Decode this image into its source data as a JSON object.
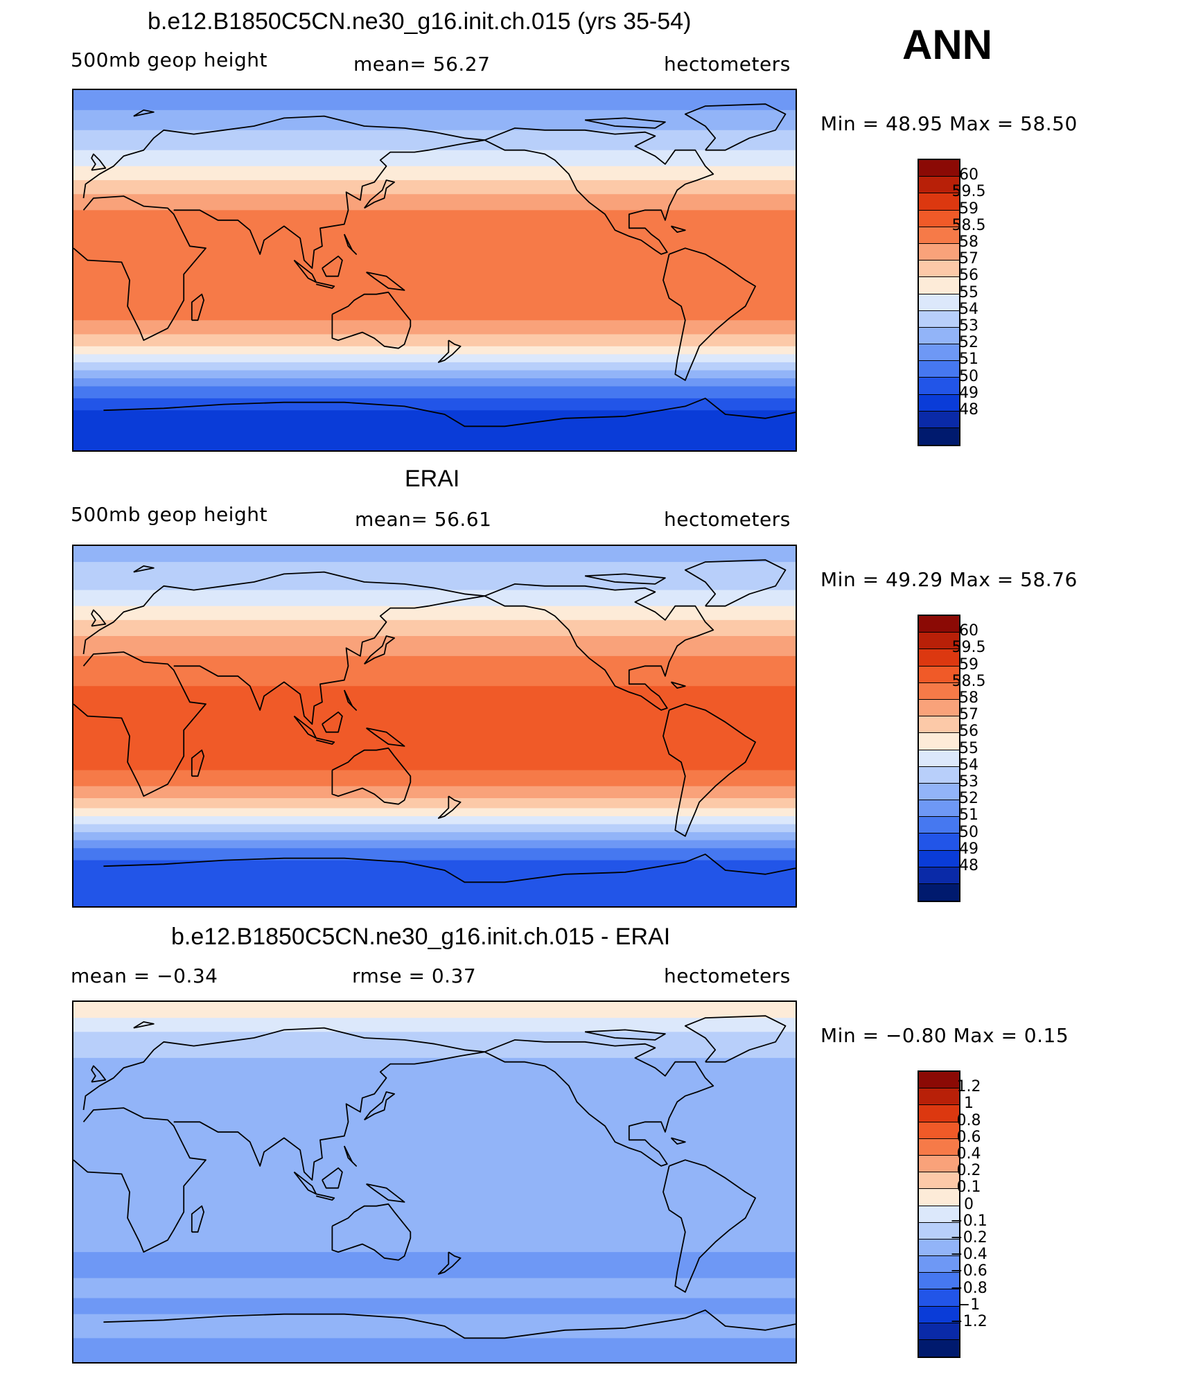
{
  "season": "ANN",
  "palette_abs": [
    "#001a6e",
    "#0a2aa8",
    "#0a3cd8",
    "#2255e8",
    "#4678f0",
    "#6e98f5",
    "#92b4f8",
    "#b8cffa",
    "#dce8fb",
    "#fdebd8",
    "#fcc9a8",
    "#f9a27a",
    "#f67a48",
    "#f05a28",
    "#dc3810",
    "#b82008",
    "#8b0a05"
  ],
  "palette_diff": [
    "#001a6e",
    "#0a2aa8",
    "#0a3cd8",
    "#2255e8",
    "#4678f0",
    "#6e98f5",
    "#92b4f8",
    "#b8cffa",
    "#dce8fb",
    "#fdebd8",
    "#fcc9a8",
    "#f9a27a",
    "#f67a48",
    "#f05a28",
    "#dc3810",
    "#b82008",
    "#8b0a05"
  ],
  "panels": [
    {
      "title": "b.e12.B1850C5CN.ne30_g16.init.ch.015 (yrs 35-54)",
      "left_label": "500mb  geop  height",
      "mid_label": "mean=   56.27",
      "right_label": "hectometers",
      "minmax": "Min  =     48.95  Max  =     58.50",
      "colorbar_labels": [
        "60",
        "59.5",
        "59",
        "58.5",
        "58",
        "57",
        "56",
        "55",
        "54",
        "53",
        "52",
        "51",
        "50",
        "49",
        "48"
      ],
      "bands": [
        {
          "lat": 90,
          "level": 5
        },
        {
          "lat": 80,
          "level": 6
        },
        {
          "lat": 70,
          "level": 7
        },
        {
          "lat": 60,
          "level": 8
        },
        {
          "lat": 52,
          "level": 9
        },
        {
          "lat": 45,
          "level": 10
        },
        {
          "lat": 38,
          "level": 11
        },
        {
          "lat": 30,
          "level": 12
        },
        {
          "lat": -25,
          "level": 11
        },
        {
          "lat": -32,
          "level": 10
        },
        {
          "lat": -38,
          "level": 9
        },
        {
          "lat": -42,
          "level": 8
        },
        {
          "lat": -46,
          "level": 7
        },
        {
          "lat": -50,
          "level": 6
        },
        {
          "lat": -54,
          "level": 5
        },
        {
          "lat": -58,
          "level": 4
        },
        {
          "lat": -64,
          "level": 3
        },
        {
          "lat": -70,
          "level": 2
        }
      ]
    },
    {
      "title": "ERAI",
      "left_label": "500mb  geop  height",
      "mid_label": "mean=   56.61",
      "right_label": "hectometers",
      "minmax": "Min  =     49.29  Max  =     58.76",
      "colorbar_labels": [
        "60",
        "59.5",
        "59",
        "58.5",
        "58",
        "57",
        "56",
        "55",
        "54",
        "53",
        "52",
        "51",
        "50",
        "49",
        "48"
      ],
      "bands": [
        {
          "lat": 90,
          "level": 6
        },
        {
          "lat": 82,
          "level": 7
        },
        {
          "lat": 68,
          "level": 8
        },
        {
          "lat": 60,
          "level": 9
        },
        {
          "lat": 53,
          "level": 10
        },
        {
          "lat": 45,
          "level": 11
        },
        {
          "lat": 35,
          "level": 12
        },
        {
          "lat": 20,
          "level": 13
        },
        {
          "lat": -22,
          "level": 12
        },
        {
          "lat": -30,
          "level": 11
        },
        {
          "lat": -36,
          "level": 10
        },
        {
          "lat": -41,
          "level": 9
        },
        {
          "lat": -45,
          "level": 8
        },
        {
          "lat": -49,
          "level": 7
        },
        {
          "lat": -53,
          "level": 6
        },
        {
          "lat": -57,
          "level": 5
        },
        {
          "lat": -61,
          "level": 4
        },
        {
          "lat": -67,
          "level": 3
        }
      ]
    },
    {
      "title": "b.e12.B1850C5CN.ne30_g16.init.ch.015 - ERAI",
      "left_label": "mean  =    −0.34",
      "mid_label": "rmse  =     0.37",
      "right_label": "hectometers",
      "minmax": "Min  =    −0.80  Max  =      0.15",
      "colorbar_labels": [
        "1.2",
        "1",
        "0.8",
        "0.6",
        "0.4",
        "0.2",
        "0.1",
        "0",
        "−0.1",
        "−0.2",
        "−0.4",
        "−0.6",
        "−0.8",
        "−1",
        "−1.2"
      ],
      "bands": [
        {
          "lat": 90,
          "level": 9
        },
        {
          "lat": 82,
          "level": 8
        },
        {
          "lat": 75,
          "level": 7
        },
        {
          "lat": 62,
          "level": 6
        },
        {
          "lat": -35,
          "level": 5
        },
        {
          "lat": -48,
          "level": 6
        },
        {
          "lat": -58,
          "level": 5
        },
        {
          "lat": -66,
          "level": 6
        },
        {
          "lat": -78,
          "level": 5
        }
      ]
    }
  ]
}
